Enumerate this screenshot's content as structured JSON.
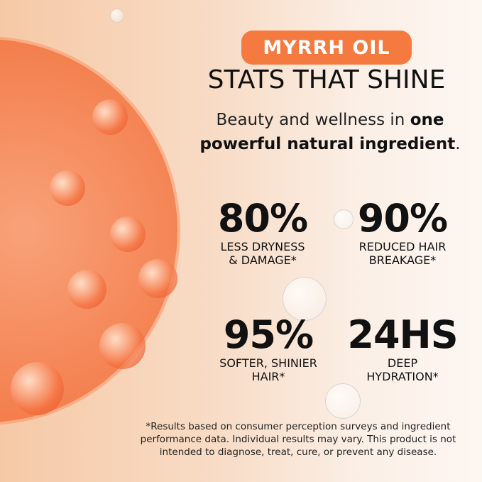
{
  "badge": "MYRRH OIL",
  "title": "STATS THAT SHINE",
  "subtitle": {
    "normal": "Beauty and wellness in ",
    "bold": "one powerful natural ingredient",
    "end": "."
  },
  "stats": [
    {
      "value": "80%",
      "label1": "LESS DRYNESS",
      "label2": "& DAMAGE*"
    },
    {
      "value": "90%",
      "label1": "REDUCED HAIR",
      "label2": "BREAKAGE*"
    },
    {
      "value": "95%",
      "label1": "SOFTER, SHINIER",
      "label2": "HAIR*"
    },
    {
      "value": "24HS",
      "label1": "DEEP",
      "label2": "HYDRATION*"
    }
  ],
  "disclaimer": "*Results based on consumer perception surveys and ingredient performance data. Individual results may vary. This product is not intended to diagnose, treat, cure, or prevent any disease.",
  "colors": {
    "accent": "#f47a40",
    "text": "#111111"
  }
}
